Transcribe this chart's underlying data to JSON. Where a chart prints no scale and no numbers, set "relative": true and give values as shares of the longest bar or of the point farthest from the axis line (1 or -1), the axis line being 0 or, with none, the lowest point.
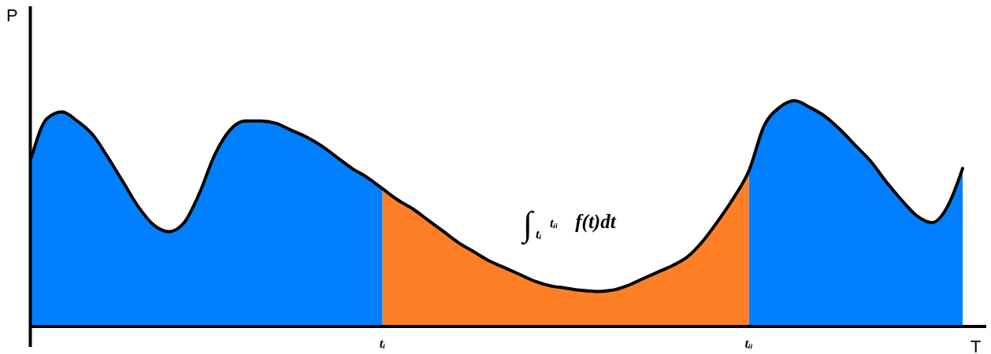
{
  "chart_data": {
    "type": "area",
    "relative": true,
    "xlabel": "T",
    "ylabel": "P",
    "line_style": "solid",
    "categories": [
      null,
      null,
      null,
      null,
      null,
      null,
      null,
      null,
      null,
      null,
      null,
      null,
      null,
      null,
      null,
      null,
      null,
      null,
      null,
      null,
      null,
      null,
      null,
      "tᵢ",
      null,
      null,
      null,
      null,
      null,
      null,
      null,
      null,
      null,
      null,
      null,
      null,
      null,
      null,
      null,
      null,
      null,
      null,
      null,
      null,
      null,
      null,
      null,
      "tᵢᵢ",
      null,
      null,
      null,
      null,
      null,
      null,
      null,
      null,
      null,
      null,
      null,
      null,
      null,
      null
    ],
    "series": [
      {
        "color": "#0080ff",
        "values": [
          0.75,
          0.92,
          0.95,
          0.91,
          0.85,
          0.75,
          0.64,
          0.53,
          0.45,
          0.42,
          0.46,
          0.59,
          0.76,
          0.87,
          0.91,
          0.91,
          0.9,
          0.87,
          0.84,
          0.8,
          0.75,
          0.7,
          0.66,
          0.61,
          null,
          null,
          null,
          null,
          null,
          null,
          null,
          null,
          null,
          null,
          null,
          null,
          null,
          null,
          null,
          null,
          null,
          null,
          null,
          null,
          null,
          null,
          null,
          null,
          null,
          null,
          null,
          null,
          null,
          null,
          null,
          null,
          null,
          null,
          null,
          null,
          null,
          null
        ]
      },
      {
        "color": "#ff7f27",
        "values": [
          null,
          null,
          null,
          null,
          null,
          null,
          null,
          null,
          null,
          null,
          null,
          null,
          null,
          null,
          null,
          null,
          null,
          null,
          null,
          null,
          null,
          null,
          null,
          0.61,
          0.56,
          0.52,
          0.47,
          0.42,
          0.37,
          0.33,
          0.29,
          0.26,
          0.23,
          0.2,
          0.18,
          0.17,
          0.16,
          0.155,
          0.16,
          0.18,
          0.21,
          0.24,
          0.27,
          0.31,
          0.38,
          0.47,
          0.57,
          0.69,
          null,
          null,
          null,
          null,
          null,
          null,
          null,
          null,
          null,
          null,
          null,
          null,
          null,
          null
        ]
      },
      {
        "color": "#0080ff",
        "values": [
          null,
          null,
          null,
          null,
          null,
          null,
          null,
          null,
          null,
          null,
          null,
          null,
          null,
          null,
          null,
          null,
          null,
          null,
          null,
          null,
          null,
          null,
          null,
          null,
          null,
          null,
          null,
          null,
          null,
          null,
          null,
          null,
          null,
          null,
          null,
          null,
          null,
          null,
          null,
          null,
          null,
          null,
          null,
          null,
          null,
          null,
          null,
          0.69,
          0.89,
          0.97,
          1,
          0.97,
          0.93,
          0.87,
          0.8,
          0.73,
          0.64,
          0.56,
          0.49,
          0.46,
          0.53,
          0.7
        ]
      },
      {
        "type": "line",
        "color": "#000000",
        "values": [
          0.75,
          0.92,
          0.95,
          0.91,
          0.85,
          0.75,
          0.64,
          0.53,
          0.45,
          0.42,
          0.46,
          0.59,
          0.76,
          0.87,
          0.91,
          0.91,
          0.9,
          0.87,
          0.84,
          0.8,
          0.75,
          0.7,
          0.66,
          0.61,
          0.56,
          0.52,
          0.47,
          0.42,
          0.37,
          0.33,
          0.29,
          0.26,
          0.23,
          0.2,
          0.18,
          0.17,
          0.16,
          0.155,
          0.16,
          0.18,
          0.21,
          0.24,
          0.27,
          0.31,
          0.38,
          0.47,
          0.57,
          0.69,
          0.89,
          0.97,
          1,
          0.97,
          0.93,
          0.87,
          0.8,
          0.73,
          0.64,
          0.56,
          0.49,
          0.46,
          0.53,
          0.7
        ]
      }
    ],
    "annotations": [
      "∫$_{tᵢ}$$^{tᵢᵢ}$ f(t)dt"
    ]
  }
}
